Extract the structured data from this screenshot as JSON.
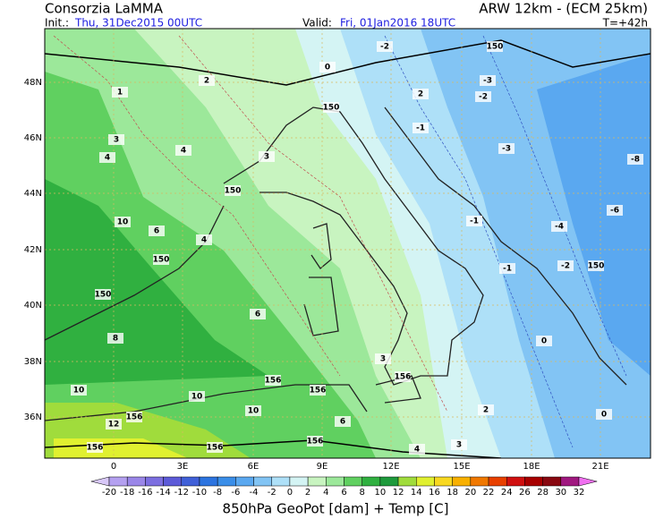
{
  "header": {
    "title": "Consorzia LaMMA",
    "model": "ARW 12km - (ECM 25km)",
    "init_label": "Init.:",
    "init": "Thu, 31Dec2015 00UTC",
    "valid_label": "Valid:",
    "valid": "Fri, 01Jan2016 18UTC",
    "lead": "T=+42h"
  },
  "map": {
    "lat_labels": [
      "48N",
      "46N",
      "44N",
      "42N",
      "40N",
      "38N",
      "36N"
    ],
    "lon_labels": [
      "0",
      "3E",
      "6E",
      "9E",
      "12E",
      "15E",
      "18E",
      "21E"
    ],
    "contour_labels": [
      -2,
      150,
      0,
      1,
      2,
      -3,
      2,
      -2,
      150,
      -1,
      3,
      4,
      -3,
      -8,
      3,
      4,
      150,
      -1,
      -4,
      -6,
      10,
      6,
      4,
      150,
      -1,
      -2,
      150,
      150,
      6,
      0,
      8,
      3,
      156,
      10,
      10,
      156,
      156,
      10,
      12,
      156,
      6,
      4,
      3,
      156,
      156,
      156,
      2,
      0
    ]
  },
  "colorbar": {
    "ticks": [
      -20,
      -18,
      -16,
      -14,
      -12,
      -10,
      -8,
      -6,
      -4,
      -2,
      0,
      2,
      4,
      6,
      8,
      10,
      12,
      14,
      16,
      18,
      20,
      22,
      24,
      26,
      28,
      30,
      32
    ],
    "colors": [
      "#d8c8f8",
      "#b4a0f0",
      "#9a86e8",
      "#7c6ee0",
      "#5c5ad8",
      "#4060d8",
      "#2c74e0",
      "#3a8ee8",
      "#5aa8f0",
      "#82c4f4",
      "#aee0f8",
      "#d4f4f4",
      "#c8f4c0",
      "#9ce89a",
      "#60d060",
      "#30b040",
      "#1e9a3c",
      "#a0dc3c",
      "#e0f030",
      "#f8d820",
      "#f8b000",
      "#f07800",
      "#e84000",
      "#d01010",
      "#a80000",
      "#880810",
      "#a01880",
      "#f070f0"
    ]
  },
  "footer": {
    "caption": "850hPa GeoPot [dam] + Temp [C]"
  }
}
